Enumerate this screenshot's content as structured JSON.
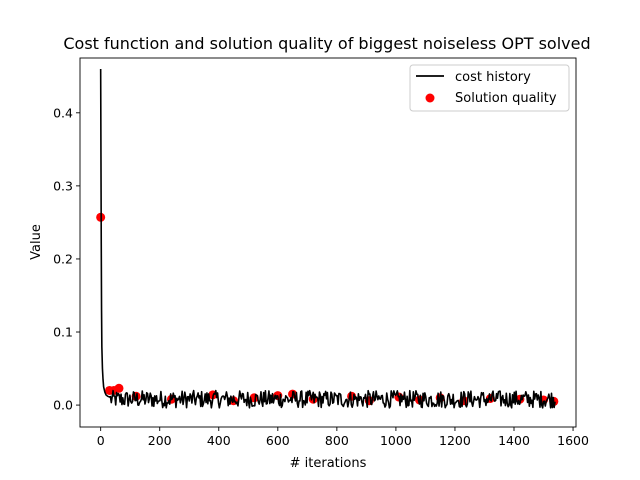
{
  "chart_data": {
    "type": "line",
    "title": "Cost function and solution quality of biggest noiseless OPT solved",
    "xlabel": "# iterations",
    "ylabel": "Value",
    "xlim": [
      -70,
      1610
    ],
    "ylim": [
      -0.03,
      0.475
    ],
    "x_ticks": [
      0,
      200,
      400,
      600,
      800,
      1000,
      1200,
      1400,
      1600
    ],
    "y_ticks": [
      0.0,
      0.1,
      0.2,
      0.3,
      0.4
    ],
    "x_tick_labels": [
      "0",
      "200",
      "400",
      "600",
      "800",
      "1000",
      "1200",
      "1400",
      "1600"
    ],
    "y_tick_labels": [
      "0.0",
      "0.1",
      "0.2",
      "0.3",
      "0.4"
    ],
    "legend": {
      "position": "top-right",
      "entries": [
        "cost history",
        "Solution quality"
      ]
    },
    "series": [
      {
        "name": "cost history",
        "kind": "line",
        "color": "#000000",
        "points": [
          [
            0,
            0.46
          ],
          [
            1,
            0.34
          ],
          [
            2,
            0.22
          ],
          [
            3,
            0.13
          ],
          [
            4,
            0.08
          ],
          [
            6,
            0.05
          ],
          [
            8,
            0.035
          ],
          [
            10,
            0.025
          ],
          [
            14,
            0.018
          ],
          [
            18,
            0.014
          ],
          [
            24,
            0.012
          ],
          [
            30,
            0.011
          ]
        ],
        "steady": {
          "x_start": 30,
          "x_end": 1540,
          "step": 3,
          "mean": 0.008,
          "min": -0.007,
          "max": 0.021
        }
      },
      {
        "name": "Solution quality",
        "kind": "scatter",
        "color": "#ff0000",
        "points": [
          [
            0,
            0.257
          ],
          [
            30,
            0.02
          ],
          [
            45,
            0.02
          ],
          [
            62,
            0.023
          ],
          [
            120,
            0.012
          ],
          [
            240,
            0.008
          ],
          [
            380,
            0.014
          ],
          [
            450,
            0.006
          ],
          [
            520,
            0.01
          ],
          [
            600,
            0.013
          ],
          [
            650,
            0.015
          ],
          [
            720,
            0.008
          ],
          [
            850,
            0.012
          ],
          [
            910,
            0.006
          ],
          [
            1010,
            0.011
          ],
          [
            1080,
            0.007
          ],
          [
            1150,
            0.01
          ],
          [
            1230,
            0.006
          ],
          [
            1320,
            0.009
          ],
          [
            1420,
            0.008
          ],
          [
            1500,
            0.007
          ],
          [
            1535,
            0.005
          ]
        ]
      }
    ]
  }
}
